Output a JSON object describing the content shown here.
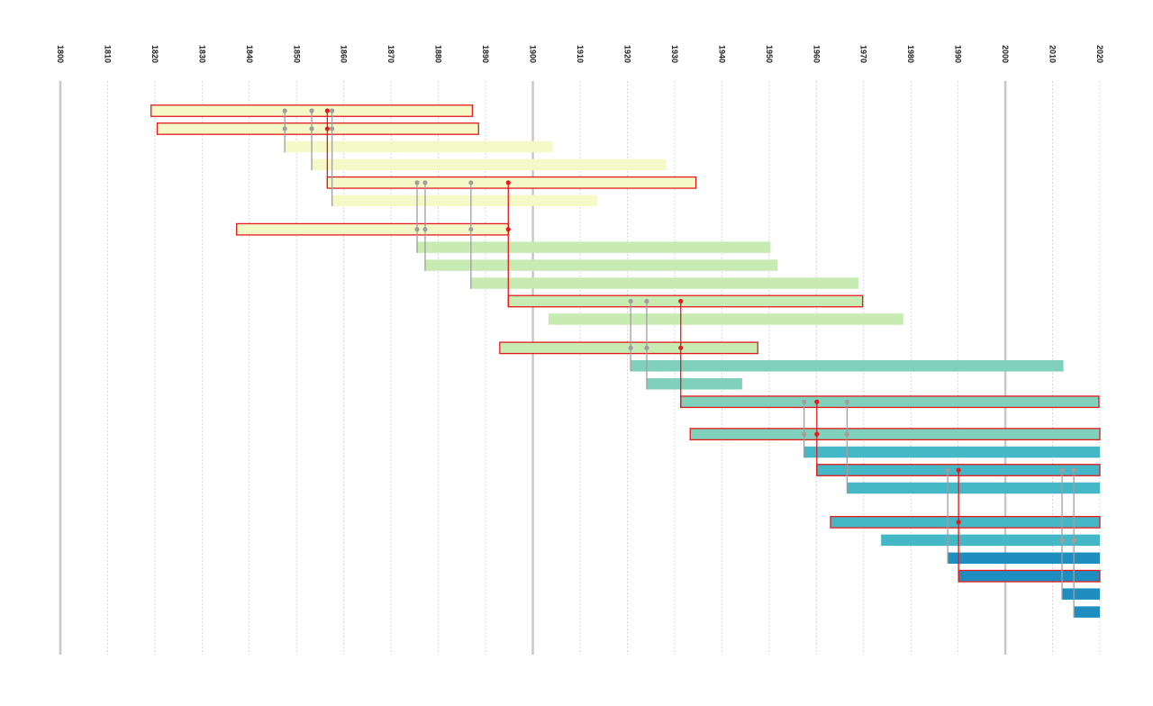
{
  "chart_data": {
    "type": "gantt-timeline",
    "xlim": [
      1800,
      2020
    ],
    "ticks": [
      1800,
      1810,
      1820,
      1830,
      1840,
      1850,
      1860,
      1870,
      1880,
      1890,
      1900,
      1910,
      1920,
      1930,
      1940,
      1950,
      1960,
      1970,
      1980,
      1990,
      2000,
      2010,
      2020
    ],
    "tick_labels": [
      "1800",
      "1810",
      "1820",
      "1830",
      "1840",
      "1850",
      "1860",
      "1870",
      "1880",
      "1890",
      "1900",
      "1910",
      "1920",
      "1930",
      "1940",
      "1950",
      "1960",
      "1970",
      "1980",
      "1990",
      "2000",
      "2010",
      "2020"
    ],
    "major_ticks": [
      1800,
      1900,
      2000
    ],
    "grid": true,
    "colors": {
      "gen1": "#f5f9c8",
      "gen2": "#c8ebb4",
      "gen3": "#80d1bb",
      "gen4": "#45b8c7",
      "gen5": "#1e8dc0",
      "highlight": "#e31a1c",
      "connector": "#9e9e9e",
      "major_grid": "#c8c8c8",
      "minor_grid": "#c8c8c8"
    },
    "rows": [
      {
        "row": 0,
        "start": 1819.2,
        "end": 1887.2,
        "gen": "gen1",
        "highlight": true
      },
      {
        "row": 1,
        "start": 1820.5,
        "end": 1888.5,
        "gen": "gen1",
        "highlight": true
      },
      {
        "row": 2,
        "start": 1847.5,
        "end": 1904.2,
        "gen": "gen1",
        "highlight": false
      },
      {
        "row": 3,
        "start": 1853.2,
        "end": 1928.2,
        "gen": "gen1",
        "highlight": false
      },
      {
        "row": 4,
        "start": 1856.5,
        "end": 1934.5,
        "gen": "gen1",
        "highlight": true
      },
      {
        "row": 5,
        "start": 1857.5,
        "end": 1913.6,
        "gen": "gen1",
        "highlight": false
      },
      {
        "row": 6.6,
        "start": 1837.3,
        "end": 1894.8,
        "gen": "gen1",
        "highlight": true
      },
      {
        "row": 7.6,
        "start": 1875.5,
        "end": 1950.3,
        "gen": "gen2",
        "highlight": false
      },
      {
        "row": 8.6,
        "start": 1877.2,
        "end": 1951.8,
        "gen": "gen2",
        "highlight": false
      },
      {
        "row": 9.6,
        "start": 1886.9,
        "end": 1968.9,
        "gen": "gen2",
        "highlight": false
      },
      {
        "row": 10.6,
        "start": 1894.8,
        "end": 1969.8,
        "gen": "gen2",
        "highlight": true
      },
      {
        "row": 11.6,
        "start": 1903.3,
        "end": 1978.4,
        "gen": "gen2",
        "highlight": false
      },
      {
        "row": 13.2,
        "start": 1893.0,
        "end": 1947.6,
        "gen": "gen2",
        "highlight": true
      },
      {
        "row": 14.2,
        "start": 1920.7,
        "end": 2012.3,
        "gen": "gen3",
        "highlight": false
      },
      {
        "row": 15.2,
        "start": 1924.1,
        "end": 1944.3,
        "gen": "gen3",
        "highlight": false
      },
      {
        "row": 16.2,
        "start": 1931.3,
        "end": 2019.8,
        "gen": "gen3",
        "highlight": true
      },
      {
        "row": 18.0,
        "start": 1933.3,
        "end": 2020.0,
        "gen": "gen3",
        "highlight": true
      },
      {
        "row": 19.0,
        "start": 1957.4,
        "end": 2020.0,
        "gen": "gen4",
        "highlight": false
      },
      {
        "row": 20.0,
        "start": 1960.1,
        "end": 2020.0,
        "gen": "gen4",
        "highlight": true
      },
      {
        "row": 21.0,
        "start": 1966.5,
        "end": 2020.0,
        "gen": "gen4",
        "highlight": false
      },
      {
        "row": 22.9,
        "start": 1963.0,
        "end": 2020.0,
        "gen": "gen4",
        "highlight": true
      },
      {
        "row": 23.9,
        "start": 1973.7,
        "end": 2020.0,
        "gen": "gen4",
        "highlight": false
      },
      {
        "row": 24.9,
        "start": 1987.8,
        "end": 2020.0,
        "gen": "gen5",
        "highlight": false
      },
      {
        "row": 25.9,
        "start": 1990.1,
        "end": 2020.0,
        "gen": "gen5",
        "highlight": true
      },
      {
        "row": 26.9,
        "start": 2012.0,
        "end": 2020.0,
        "gen": "gen5",
        "highlight": false
      },
      {
        "row": 27.9,
        "start": 2014.5,
        "end": 2020.0,
        "gen": "gen5",
        "highlight": false
      }
    ],
    "links": [
      {
        "year": 1847.5,
        "from_row": 0,
        "to_row": 2,
        "highlight": false
      },
      {
        "year": 1853.2,
        "from_row": 0,
        "to_row": 3,
        "highlight": false
      },
      {
        "year": 1856.5,
        "from_row": 0,
        "to_row": 4,
        "highlight": true
      },
      {
        "year": 1857.5,
        "from_row": 0,
        "to_row": 5,
        "highlight": false
      },
      {
        "year": 1875.5,
        "from_row": 4,
        "to_row": 7.6,
        "highlight": false
      },
      {
        "year": 1877.2,
        "from_row": 4,
        "to_row": 8.6,
        "highlight": false
      },
      {
        "year": 1886.9,
        "from_row": 4,
        "to_row": 9.6,
        "highlight": false
      },
      {
        "year": 1894.8,
        "from_row": 4,
        "to_row": 10.6,
        "highlight": true
      },
      {
        "year": 1920.7,
        "from_row": 10.6,
        "to_row": 14.2,
        "highlight": false
      },
      {
        "year": 1924.1,
        "from_row": 10.6,
        "to_row": 15.2,
        "highlight": false
      },
      {
        "year": 1931.3,
        "from_row": 10.6,
        "to_row": 16.2,
        "highlight": true
      },
      {
        "year": 1957.4,
        "from_row": 16.2,
        "to_row": 19.0,
        "highlight": false
      },
      {
        "year": 1960.1,
        "from_row": 16.2,
        "to_row": 20.0,
        "highlight": true
      },
      {
        "year": 1966.5,
        "from_row": 16.2,
        "to_row": 21.0,
        "highlight": false
      },
      {
        "year": 1987.8,
        "from_row": 20.0,
        "to_row": 24.9,
        "highlight": false
      },
      {
        "year": 1990.1,
        "from_row": 20.0,
        "to_row": 25.9,
        "highlight": true
      },
      {
        "year": 2012.0,
        "from_row": 20.0,
        "to_row": 26.9,
        "highlight": false
      },
      {
        "year": 2014.5,
        "from_row": 20.0,
        "to_row": 27.9,
        "highlight": false
      }
    ],
    "link_dots": [
      {
        "year": 1847.5,
        "row": 1,
        "highlight": false
      },
      {
        "year": 1853.2,
        "row": 1,
        "highlight": false
      },
      {
        "year": 1856.5,
        "row": 1,
        "highlight": true
      },
      {
        "year": 1857.5,
        "row": 1,
        "highlight": false
      },
      {
        "year": 1875.5,
        "row": 6.6,
        "highlight": false
      },
      {
        "year": 1877.2,
        "row": 6.6,
        "highlight": false
      },
      {
        "year": 1886.9,
        "row": 6.6,
        "highlight": false
      },
      {
        "year": 1894.8,
        "row": 6.6,
        "highlight": true
      },
      {
        "year": 1920.7,
        "row": 13.2,
        "highlight": false
      },
      {
        "year": 1924.1,
        "row": 13.2,
        "highlight": false
      },
      {
        "year": 1931.3,
        "row": 13.2,
        "highlight": true
      },
      {
        "year": 1957.4,
        "row": 18.0,
        "highlight": false
      },
      {
        "year": 1960.1,
        "row": 18.0,
        "highlight": true
      },
      {
        "year": 1966.5,
        "row": 18.0,
        "highlight": false
      },
      {
        "year": 1990.1,
        "row": 22.9,
        "highlight": true
      },
      {
        "year": 2012.0,
        "row": 23.9,
        "highlight": false
      },
      {
        "year": 2014.5,
        "row": 23.9,
        "highlight": false
      }
    ]
  }
}
